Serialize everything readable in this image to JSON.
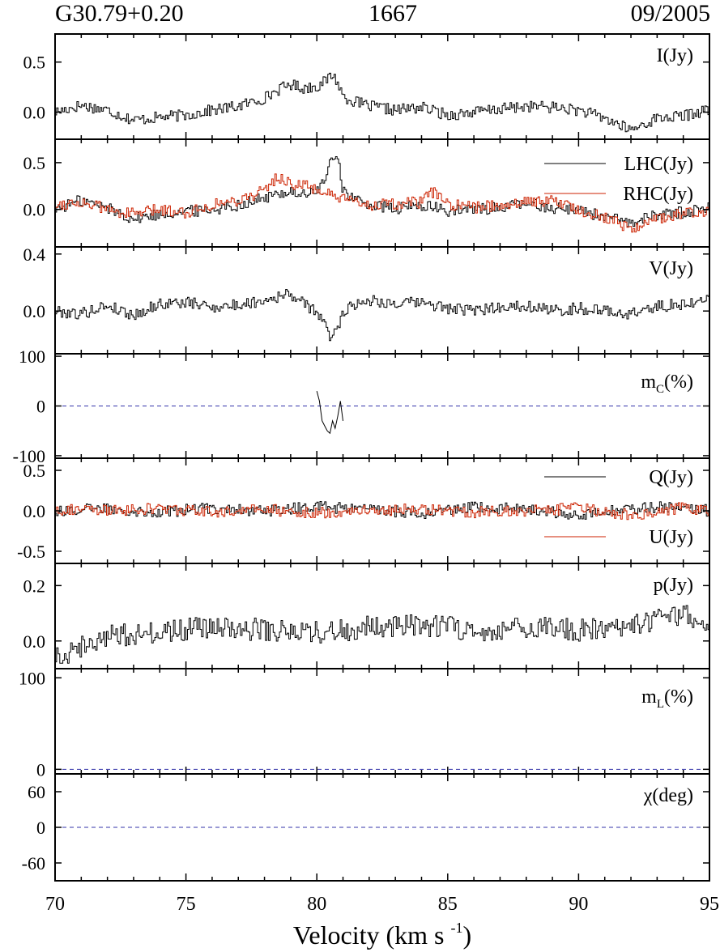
{
  "header": {
    "source": "G30.79+0.20",
    "frequency": "1667",
    "date": "09/2005"
  },
  "colors": {
    "lhc": "#000000",
    "rhc": "#cc2200",
    "q": "#000000",
    "u": "#cc2200",
    "reference_line": "#3333aa",
    "axes": "#000000"
  },
  "chart_data": {
    "type": "line",
    "xlabel": "Velocity (km s",
    "xlabel_sup": "-1",
    "xlabel_tail": ")",
    "xlim": [
      70,
      95
    ],
    "xticks": [
      70,
      75,
      80,
      85,
      90,
      95
    ],
    "xtick_labels": [
      "70",
      "75",
      "80",
      "85",
      "90",
      "95"
    ],
    "panels": [
      {
        "id": "I",
        "label": "I(Jy)",
        "ylim": [
          -0.27,
          0.78
        ],
        "yticks": [
          0.0,
          0.5
        ],
        "ytick_labels": [
          "0.0",
          "0.5"
        ],
        "series": [
          {
            "name": "I(Jy)",
            "color": "#000000",
            "step": true,
            "x": [
              70,
              71,
              72,
              73,
              74,
              75,
              76,
              77,
              78,
              78.5,
              79,
              79.5,
              80,
              80.3,
              80.6,
              80.8,
              81,
              81.5,
              82,
              83,
              84,
              85,
              86,
              87,
              88,
              89,
              90,
              91,
              92,
              92.5,
              93,
              94,
              95
            ],
            "y": [
              0.0,
              0.07,
              0.02,
              -0.08,
              -0.05,
              -0.03,
              0.02,
              0.06,
              0.14,
              0.22,
              0.28,
              0.24,
              0.26,
              0.3,
              0.38,
              0.3,
              0.16,
              0.1,
              0.06,
              0.02,
              0.05,
              -0.03,
              0.0,
              0.03,
              0.06,
              0.05,
              0.02,
              -0.06,
              -0.18,
              -0.12,
              -0.06,
              -0.04,
              0.03
            ]
          }
        ]
      },
      {
        "id": "LHC_RHC",
        "ylim": [
          -0.4,
          0.75
        ],
        "yticks": [
          0.0,
          0.5
        ],
        "ytick_labels": [
          "0.0",
          "0.5"
        ],
        "series": [
          {
            "name": "LHC(Jy)",
            "color": "#000000",
            "step": true,
            "x": [
              70,
              71,
              72,
              73,
              74,
              75,
              76,
              77,
              78,
              79,
              79.5,
              80,
              80.3,
              80.6,
              80.8,
              81,
              81.5,
              82,
              83,
              84,
              85,
              86,
              87,
              88,
              89,
              90,
              91,
              92,
              93,
              94,
              95
            ],
            "y": [
              0.0,
              0.1,
              0.02,
              -0.1,
              -0.05,
              -0.02,
              0.0,
              0.05,
              0.12,
              0.2,
              0.15,
              0.2,
              0.3,
              0.55,
              0.6,
              0.2,
              0.1,
              0.05,
              0.0,
              0.05,
              -0.02,
              0.0,
              0.02,
              0.06,
              0.02,
              0.0,
              -0.08,
              -0.15,
              -0.05,
              -0.03,
              0.02
            ]
          },
          {
            "name": "RHC(Jy)",
            "color": "#cc2200",
            "step": true,
            "x": [
              70,
              71,
              72,
              73,
              74,
              75,
              76,
              77,
              78,
              78.5,
              79,
              80,
              80.5,
              81,
              82,
              83,
              84,
              84.5,
              85,
              86,
              87,
              88,
              89,
              90,
              91,
              92,
              93,
              94,
              95
            ],
            "y": [
              0.05,
              0.08,
              0.0,
              -0.05,
              0.0,
              -0.03,
              0.05,
              0.1,
              0.2,
              0.35,
              0.28,
              0.22,
              0.15,
              0.1,
              0.05,
              0.05,
              0.08,
              0.2,
              0.05,
              0.02,
              0.05,
              0.08,
              0.1,
              0.0,
              -0.08,
              -0.2,
              -0.1,
              -0.05,
              0.0
            ]
          }
        ]
      },
      {
        "id": "V",
        "label": "V(Jy)",
        "ylim": [
          -0.3,
          0.45
        ],
        "yticks": [
          0.0,
          0.4
        ],
        "ytick_labels": [
          "0.0",
          "0.4"
        ],
        "series": [
          {
            "name": "V(Jy)",
            "color": "#000000",
            "step": true,
            "x": [
              70,
              71,
              72,
              73,
              74,
              75,
              76,
              77,
              78,
              79,
              79.5,
              80,
              80.3,
              80.5,
              80.8,
              81,
              81.5,
              82,
              83,
              84,
              85,
              86,
              87,
              88,
              89,
              90,
              91,
              92,
              93,
              94,
              95
            ],
            "y": [
              0.0,
              -0.02,
              0.04,
              -0.03,
              0.05,
              0.06,
              0.03,
              0.04,
              0.08,
              0.12,
              0.05,
              0.0,
              -0.1,
              -0.18,
              -0.12,
              0.0,
              0.05,
              0.08,
              0.05,
              0.06,
              0.02,
              0.0,
              0.03,
              0.04,
              0.0,
              0.02,
              0.0,
              -0.02,
              0.03,
              0.05,
              0.08
            ]
          }
        ]
      },
      {
        "id": "mC",
        "label": "m",
        "label_sub": "C",
        "label_tail": "(%)",
        "ylim": [
          -105,
          105
        ],
        "yticks": [
          -100,
          0,
          100
        ],
        "ytick_labels": [
          "-100",
          "0",
          "100"
        ],
        "ref_line": 0,
        "series": [
          {
            "name": "m_C(%)",
            "color": "#000000",
            "step": false,
            "x": [
              80.0,
              80.1,
              80.2,
              80.3,
              80.4,
              80.5,
              80.6,
              80.7,
              80.8,
              80.9,
              81.0
            ],
            "y": [
              30,
              10,
              -30,
              -40,
              -50,
              -55,
              -30,
              -45,
              -20,
              10,
              -30
            ]
          }
        ]
      },
      {
        "id": "Q_U",
        "ylim": [
          -0.65,
          0.65
        ],
        "yticks": [
          -0.5,
          0.0,
          0.5
        ],
        "ytick_labels": [
          "-0.5",
          "0.0",
          "0.5"
        ],
        "series": [
          {
            "name": "Q(Jy)",
            "color": "#000000",
            "step": true,
            "x": [
              70,
              72,
              74,
              76,
              78,
              80,
              82,
              84,
              86,
              88,
              90,
              92,
              94,
              95
            ],
            "y": [
              0.0,
              0.03,
              -0.02,
              0.04,
              0.0,
              0.05,
              0.02,
              -0.03,
              0.04,
              0.02,
              -0.05,
              0.03,
              0.05,
              0.0
            ]
          },
          {
            "name": "U(Jy)",
            "color": "#cc2200",
            "step": true,
            "x": [
              70,
              72,
              74,
              76,
              78,
              80,
              82,
              84,
              86,
              88,
              90,
              92,
              94,
              95
            ],
            "y": [
              0.02,
              0.0,
              0.03,
              -0.02,
              0.02,
              -0.03,
              0.01,
              0.02,
              -0.02,
              0.0,
              0.03,
              -0.05,
              0.04,
              -0.02
            ]
          }
        ]
      },
      {
        "id": "p",
        "label": "p(Jy)",
        "ylim": [
          -0.1,
          0.28
        ],
        "yticks": [
          0.0,
          0.2
        ],
        "ytick_labels": [
          "0.0",
          "0.2"
        ],
        "series": [
          {
            "name": "p(Jy)",
            "color": "#000000",
            "step": true,
            "x": [
              70,
              72,
              74,
              76,
              78,
              80,
              82,
              84,
              86,
              88,
              90,
              92,
              93,
              94,
              95
            ],
            "y": [
              -0.06,
              0.02,
              0.03,
              0.05,
              0.04,
              0.03,
              0.05,
              0.06,
              0.04,
              0.05,
              0.04,
              0.05,
              0.08,
              0.1,
              0.05
            ]
          }
        ]
      },
      {
        "id": "mL",
        "label": "m",
        "label_sub": "L",
        "label_tail": "(%)",
        "ylim": [
          -5,
          110
        ],
        "yticks": [
          0,
          100
        ],
        "ytick_labels": [
          "0",
          "100"
        ],
        "ref_line": 0,
        "series": []
      },
      {
        "id": "chi",
        "label": "χ(deg)",
        "ylim": [
          -90,
          90
        ],
        "yticks": [
          -60,
          0,
          60
        ],
        "ytick_labels": [
          "-60",
          "0",
          "60"
        ],
        "ref_line": 0,
        "series": []
      }
    ]
  }
}
